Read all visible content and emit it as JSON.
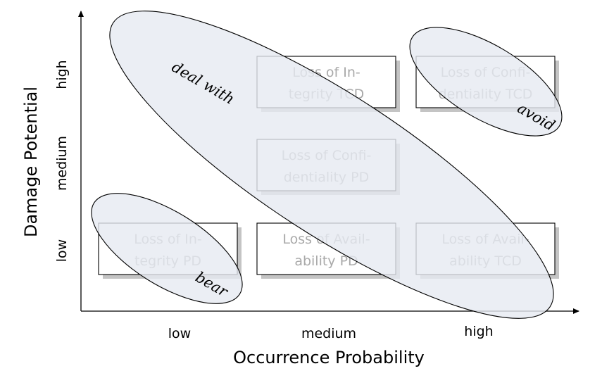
{
  "x_axis": {
    "title": "Occurrence Probability",
    "ticks": [
      "low",
      "medium",
      "high"
    ]
  },
  "y_axis": {
    "title": "Damage Potential",
    "ticks": [
      "low",
      "medium",
      "high"
    ]
  },
  "boxes": [
    {
      "x": "low",
      "y": "low",
      "lines": [
        "Loss of In-",
        "tegrity PD"
      ]
    },
    {
      "x": "medium",
      "y": "low",
      "lines": [
        "Loss of Avail-",
        "ability PD"
      ]
    },
    {
      "x": "high",
      "y": "low",
      "lines": [
        "Loss of Avail-",
        "ability TCD"
      ]
    },
    {
      "x": "medium",
      "y": "medium",
      "lines": [
        "Loss of Confi-",
        "dentiality PD"
      ]
    },
    {
      "x": "medium",
      "y": "high",
      "lines": [
        "Loss of In-",
        "tegrity TCD"
      ]
    },
    {
      "x": "high",
      "y": "high",
      "lines": [
        "Loss of Confi-",
        "dentiality TCD"
      ]
    }
  ],
  "regions": [
    {
      "label": "bear"
    },
    {
      "label": "deal with"
    },
    {
      "label": "avoid"
    }
  ],
  "colors": {
    "region_fill": "#e6eaf1",
    "box_text": "#a9a9a9",
    "shadow": "#c4c4c4"
  }
}
